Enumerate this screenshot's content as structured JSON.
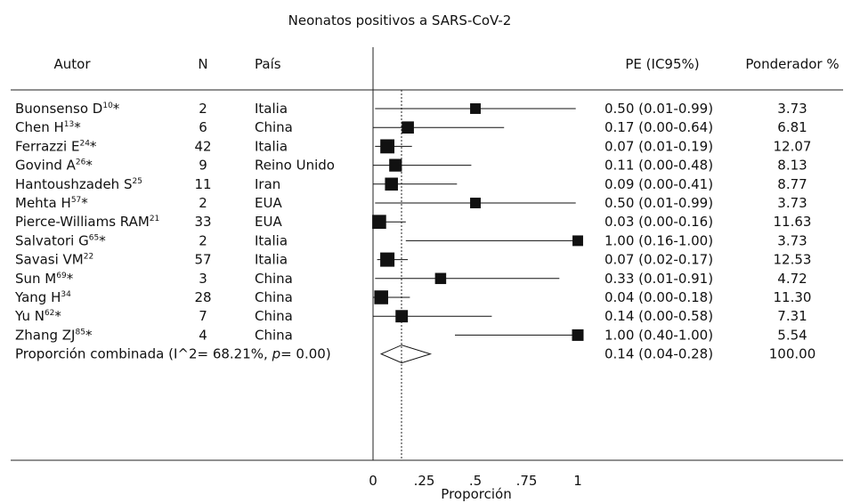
{
  "chart_data": {
    "type": "forest",
    "title": "Neonatos positivos a SARS-CoV-2",
    "xlabel": "Proporción",
    "xlim": [
      0,
      1
    ],
    "xticks": [
      {
        "value": 0,
        "label": "0"
      },
      {
        "value": 0.25,
        "label": ".25"
      },
      {
        "value": 0.5,
        "label": ".5"
      },
      {
        "value": 0.75,
        "label": ".75"
      },
      {
        "value": 1,
        "label": "1"
      }
    ],
    "reference_line": 0.14,
    "columns": {
      "author": "Autor",
      "n": "N",
      "country": "País",
      "estimate": "PE (IC95%)",
      "weight": "Ponderador %"
    },
    "studies": [
      {
        "author": "Buonsenso D",
        "ref": "10",
        "star": "*",
        "n": "2",
        "country": "Italia",
        "pe": 0.5,
        "lo": 0.01,
        "hi": 0.99,
        "ci_text": "0.50 (0.01-0.99)",
        "weight": 3.73,
        "weight_text": "3.73"
      },
      {
        "author": "Chen H",
        "ref": "13",
        "star": "*",
        "n": "6",
        "country": "China",
        "pe": 0.17,
        "lo": 0.0,
        "hi": 0.64,
        "ci_text": "0.17 (0.00-0.64)",
        "weight": 6.81,
        "weight_text": "6.81"
      },
      {
        "author": "Ferrazzi E",
        "ref": "24",
        "star": "*",
        "n": "42",
        "country": "Italia",
        "pe": 0.07,
        "lo": 0.01,
        "hi": 0.19,
        "ci_text": "0.07 (0.01-0.19)",
        "weight": 12.07,
        "weight_text": "12.07"
      },
      {
        "author": "Govind A",
        "ref": "26",
        "star": "*",
        "n": "9",
        "country": "Reino Unido",
        "pe": 0.11,
        "lo": 0.0,
        "hi": 0.48,
        "ci_text": "0.11 (0.00-0.48)",
        "weight": 8.13,
        "weight_text": "8.13"
      },
      {
        "author": "Hantoushzadeh S",
        "ref": "25",
        "star": "",
        "n": "11",
        "country": "Iran",
        "pe": 0.09,
        "lo": 0.0,
        "hi": 0.41,
        "ci_text": "0.09 (0.00-0.41)",
        "weight": 8.77,
        "weight_text": "8.77"
      },
      {
        "author": "Mehta H",
        "ref": "57",
        "star": "*",
        "n": "2",
        "country": "EUA",
        "pe": 0.5,
        "lo": 0.01,
        "hi": 0.99,
        "ci_text": "0.50 (0.01-0.99)",
        "weight": 3.73,
        "weight_text": "3.73"
      },
      {
        "author": "Pierce-Williams RAM",
        "ref": "21",
        "star": "",
        "n": "33",
        "country": "EUA",
        "pe": 0.03,
        "lo": 0.0,
        "hi": 0.16,
        "ci_text": "0.03 (0.00-0.16)",
        "weight": 11.63,
        "weight_text": "11.63"
      },
      {
        "author": "Salvatori G",
        "ref": "65",
        "star": "*",
        "n": "2",
        "country": "Italia",
        "pe": 1.0,
        "lo": 0.16,
        "hi": 1.0,
        "ci_text": "1.00 (0.16-1.00)",
        "weight": 3.73,
        "weight_text": "3.73"
      },
      {
        "author": "Savasi VM",
        "ref": "22",
        "star": "",
        "n": "57",
        "country": "Italia",
        "pe": 0.07,
        "lo": 0.02,
        "hi": 0.17,
        "ci_text": "0.07 (0.02-0.17)",
        "weight": 12.53,
        "weight_text": "12.53"
      },
      {
        "author": "Sun M",
        "ref": "69",
        "star": "*",
        "n": "3",
        "country": "China",
        "pe": 0.33,
        "lo": 0.01,
        "hi": 0.91,
        "ci_text": "0.33 (0.01-0.91)",
        "weight": 4.72,
        "weight_text": "4.72"
      },
      {
        "author": "Yang H",
        "ref": "34",
        "star": "",
        "n": "28",
        "country": "China",
        "pe": 0.04,
        "lo": 0.0,
        "hi": 0.18,
        "ci_text": "0.04 (0.00-0.18)",
        "weight": 11.3,
        "weight_text": "11.30"
      },
      {
        "author": "Yu N",
        "ref": "62",
        "star": "*",
        "n": "7",
        "country": "China",
        "pe": 0.14,
        "lo": 0.0,
        "hi": 0.58,
        "ci_text": "0.14 (0.00-0.58)",
        "weight": 7.31,
        "weight_text": "7.31"
      },
      {
        "author": "Zhang ZJ",
        "ref": "85",
        "star": "*",
        "n": "4",
        "country": "China",
        "pe": 1.0,
        "lo": 0.4,
        "hi": 1.0,
        "ci_text": "1.00 (0.40-1.00)",
        "weight": 5.54,
        "weight_text": "5.54"
      }
    ],
    "pooled": {
      "label_prefix": "Proporción combinada (I^2= 68.21%, ",
      "label_p": "p",
      "label_suffix": "= 0.00)",
      "pe": 0.14,
      "lo": 0.04,
      "hi": 0.28,
      "ci_text": "0.14 (0.04-0.28)",
      "weight_text": "100.00"
    }
  }
}
